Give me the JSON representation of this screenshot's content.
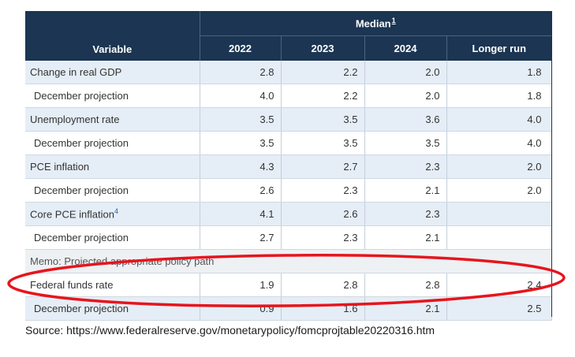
{
  "header": {
    "variable_label": "Variable",
    "median_label": "Median",
    "median_footnote": "1",
    "columns": [
      "2022",
      "2023",
      "2024",
      "Longer run"
    ]
  },
  "rows": [
    {
      "label": "Change in real GDP",
      "footnote": "",
      "values": [
        "2.8",
        "2.2",
        "2.0",
        "1.8"
      ],
      "indent": false,
      "style": "shade"
    },
    {
      "label": "December projection",
      "footnote": "",
      "values": [
        "4.0",
        "2.2",
        "2.0",
        "1.8"
      ],
      "indent": true,
      "style": "plain"
    },
    {
      "label": "Unemployment rate",
      "footnote": "",
      "values": [
        "3.5",
        "3.5",
        "3.6",
        "4.0"
      ],
      "indent": false,
      "style": "shade"
    },
    {
      "label": "December projection",
      "footnote": "",
      "values": [
        "3.5",
        "3.5",
        "3.5",
        "4.0"
      ],
      "indent": true,
      "style": "plain"
    },
    {
      "label": "PCE inflation",
      "footnote": "",
      "values": [
        "4.3",
        "2.7",
        "2.3",
        "2.0"
      ],
      "indent": false,
      "style": "shade"
    },
    {
      "label": "December projection",
      "footnote": "",
      "values": [
        "2.6",
        "2.3",
        "2.1",
        "2.0"
      ],
      "indent": true,
      "style": "plain"
    },
    {
      "label": "Core PCE inflation",
      "footnote": "4",
      "values": [
        "4.1",
        "2.6",
        "2.3",
        ""
      ],
      "indent": false,
      "style": "shade"
    },
    {
      "label": "December projection",
      "footnote": "",
      "values": [
        "2.7",
        "2.3",
        "2.1",
        ""
      ],
      "indent": true,
      "style": "plain"
    },
    {
      "label": "Memo: Projected appropriate policy path",
      "memo": true,
      "style": "memo"
    },
    {
      "label": "Federal funds rate",
      "footnote": "",
      "values": [
        "1.9",
        "2.8",
        "2.8",
        "2.4"
      ],
      "indent": false,
      "style": "plain"
    },
    {
      "label": "December projection",
      "footnote": "",
      "values": [
        "0.9",
        "1.6",
        "2.1",
        "2.5"
      ],
      "indent": true,
      "style": "shade"
    }
  ],
  "annotation": {
    "shape": "ellipse",
    "color": "#e8141c",
    "target": "Federal funds rate"
  },
  "source": "Source: https://www.federalreserve.gov/monetarypolicy/fomcprojtable20220316.htm",
  "colors": {
    "header_bg": "#1b3552",
    "shade_row": "#e5eef7",
    "highlight": "#e8141c"
  }
}
